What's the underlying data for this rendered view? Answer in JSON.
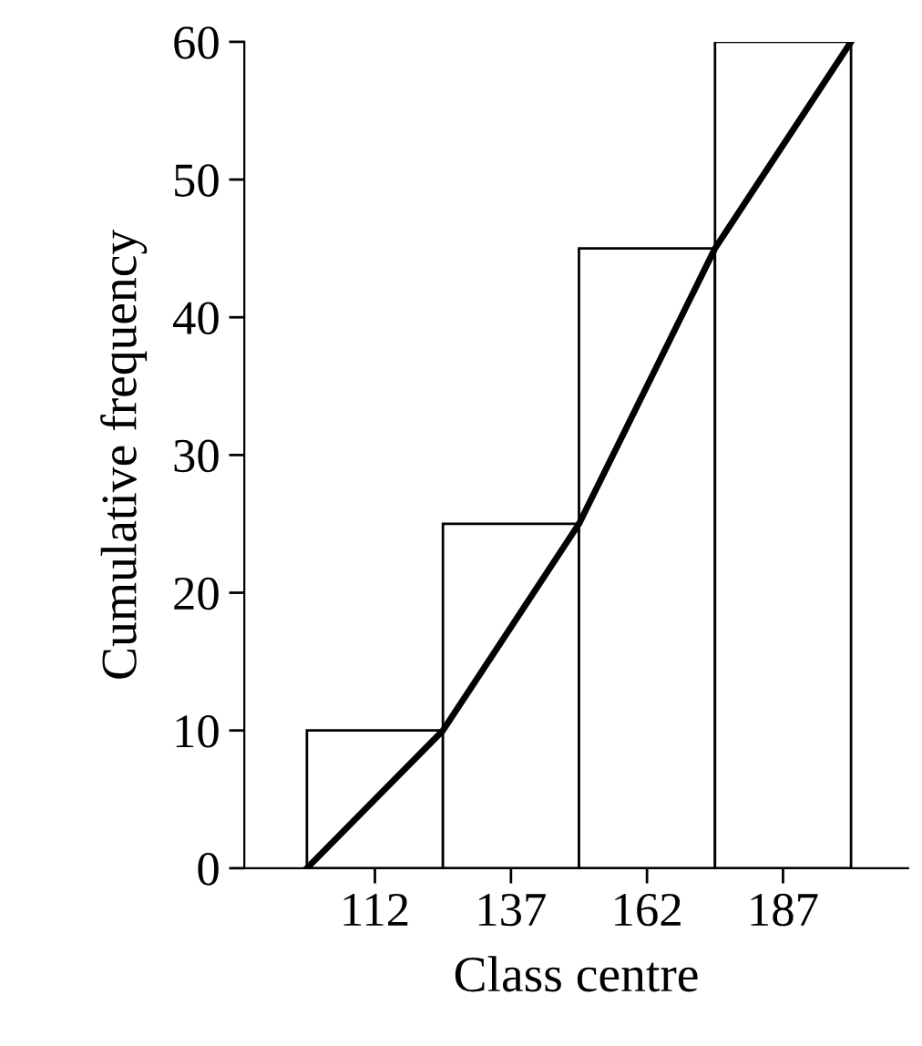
{
  "chart_data": {
    "type": "histogram",
    "xlabel": "Class centre",
    "ylabel": "Cumulative frequency",
    "bins": [
      99.5,
      124.5,
      149.5,
      174.5,
      199.5
    ],
    "values": [
      10,
      25,
      45,
      60
    ],
    "color": "#ffffff",
    "series": [
      {
        "type": "line",
        "x": [
          99.5,
          124.5,
          149.5,
          174.5,
          199.5
        ],
        "values": [
          0,
          10,
          25,
          45,
          60
        ],
        "color": "#000000"
      }
    ],
    "xlim": [
      88,
      210
    ],
    "ylim": [
      0,
      60
    ],
    "xticks": [
      112,
      137,
      162,
      187
    ],
    "yticks": [
      0,
      10,
      20,
      30,
      40,
      50,
      60
    ],
    "grid": false
  }
}
